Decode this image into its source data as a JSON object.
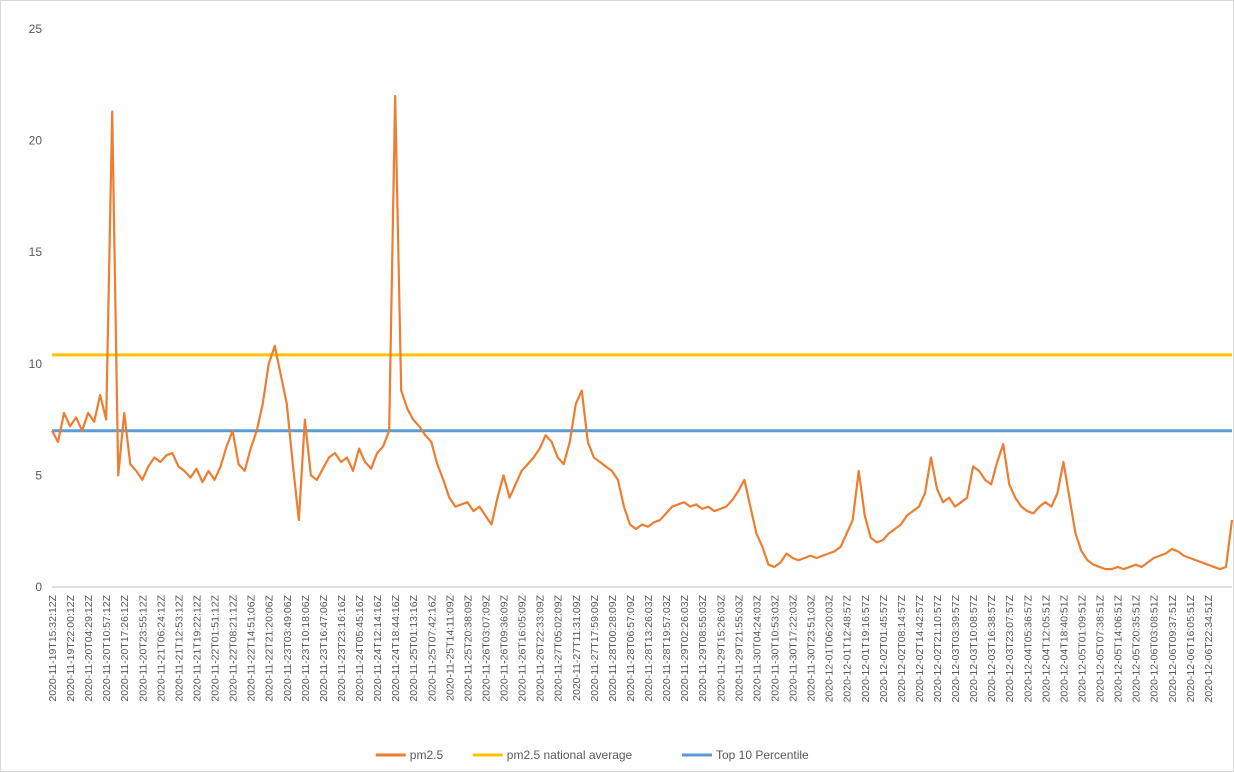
{
  "chart_data": {
    "type": "line",
    "categories": [
      "2020-11-19T15:32:12Z",
      null,
      null,
      "2020-11-19T22:00:12Z",
      null,
      null,
      "2020-11-20T04:29:12Z",
      null,
      null,
      "2020-11-20T10:57:12Z",
      null,
      null,
      "2020-11-20T17:26:12Z",
      null,
      null,
      "2020-11-20T23:55:12Z",
      null,
      null,
      "2020-11-21T06:24:12Z",
      null,
      null,
      "2020-11-21T12:53:12Z",
      null,
      null,
      "2020-11-21T19:22:12Z",
      null,
      null,
      "2020-11-22T01:51:12Z",
      null,
      null,
      "2020-11-22T08:21:12Z",
      null,
      null,
      "2020-11-22T14:51:06Z",
      null,
      null,
      "2020-11-22T21:20:06Z",
      null,
      null,
      "2020-11-23T03:49:06Z",
      null,
      null,
      "2020-11-23T10:18:06Z",
      null,
      null,
      "2020-11-23T16:47:06Z",
      null,
      null,
      "2020-11-23T23:16:16Z",
      null,
      null,
      "2020-11-24T05:45:16Z",
      null,
      null,
      "2020-11-24T12:14:16Z",
      null,
      null,
      "2020-11-24T18:44:16Z",
      null,
      null,
      "2020-11-25T01:13:16Z",
      null,
      null,
      "2020-11-25T07:42:16Z",
      null,
      null,
      "2020-11-25T14:11:09Z",
      null,
      null,
      "2020-11-25T20:38:09Z",
      null,
      null,
      "2020-11-26T03:07:09Z",
      null,
      null,
      "2020-11-26T09:36:09Z",
      null,
      null,
      "2020-11-26T16:05:09Z",
      null,
      null,
      "2020-11-26T22:33:09Z",
      null,
      null,
      "2020-11-27T05:02:09Z",
      null,
      null,
      "2020-11-27T11:31:09Z",
      null,
      null,
      "2020-11-27T17:59:09Z",
      null,
      null,
      "2020-11-28T00:28:09Z",
      null,
      null,
      "2020-11-28T06:57:09Z",
      null,
      null,
      "2020-11-28T13:26:03Z",
      null,
      null,
      "2020-11-28T19:57:03Z",
      null,
      null,
      "2020-11-29T02:26:03Z",
      null,
      null,
      "2020-11-29T08:55:03Z",
      null,
      null,
      "2020-11-29T15:26:03Z",
      null,
      null,
      "2020-11-29T21:55:03Z",
      null,
      null,
      "2020-11-30T04:24:03Z",
      null,
      null,
      "2020-11-30T10:53:03Z",
      null,
      null,
      "2020-11-30T17:22:03Z",
      null,
      null,
      "2020-11-30T23:51:03Z",
      null,
      null,
      "2020-12-01T06:20:03Z",
      null,
      null,
      "2020-12-01T12:48:57Z",
      null,
      null,
      "2020-12-01T19:16:57Z",
      null,
      null,
      "2020-12-02T01:45:57Z",
      null,
      null,
      "2020-12-02T08:14:57Z",
      null,
      null,
      "2020-12-02T14:42:57Z",
      null,
      null,
      "2020-12-02T21:10:57Z",
      null,
      null,
      "2020-12-03T03:39:57Z",
      null,
      null,
      "2020-12-03T10:08:57Z",
      null,
      null,
      "2020-12-03T16:38:57Z",
      null,
      null,
      "2020-12-03T23:07:57Z",
      null,
      null,
      "2020-12-04T05:36:57Z",
      null,
      null,
      "2020-12-04T12:05:51Z",
      null,
      null,
      "2020-12-04T18:40:51Z",
      null,
      null,
      "2020-12-05T01:09:51Z",
      null,
      null,
      "2020-12-05T07:38:51Z",
      null,
      null,
      "2020-12-05T14:06:51Z",
      null,
      null,
      "2020-12-05T20:35:51Z",
      null,
      null,
      "2020-12-06T03:08:51Z",
      null,
      null,
      "2020-12-06T09:37:51Z",
      null,
      null,
      "2020-12-06T16:05:51Z",
      null,
      null,
      "2020-12-06T22:34:51Z",
      null,
      null,
      null,
      null
    ],
    "series": [
      {
        "name": "pm2.5",
        "color": "#ed7d31",
        "values": [
          7.0,
          6.5,
          7.8,
          7.2,
          7.6,
          7.0,
          7.8,
          7.4,
          8.6,
          7.5,
          21.3,
          5.0,
          7.8,
          5.5,
          5.2,
          4.8,
          5.4,
          5.8,
          5.6,
          5.9,
          6.0,
          5.4,
          5.2,
          4.9,
          5.3,
          4.7,
          5.2,
          4.8,
          5.4,
          6.3,
          7.0,
          5.5,
          5.2,
          6.2,
          7.0,
          8.2,
          10.0,
          10.8,
          9.5,
          8.2,
          5.5,
          3.0,
          7.5,
          5.0,
          4.8,
          5.3,
          5.8,
          6.0,
          5.6,
          5.8,
          5.2,
          6.2,
          5.6,
          5.3,
          6.0,
          6.3,
          7.0,
          22.0,
          8.8,
          8.0,
          7.5,
          7.2,
          6.8,
          6.5,
          5.5,
          4.8,
          4.0,
          3.6,
          3.7,
          3.8,
          3.4,
          3.6,
          3.2,
          2.8,
          4.0,
          5.0,
          4.0,
          4.6,
          5.2,
          5.5,
          5.8,
          6.2,
          6.8,
          6.5,
          5.8,
          5.5,
          6.5,
          8.2,
          8.8,
          6.5,
          5.8,
          5.6,
          5.4,
          5.2,
          4.8,
          3.6,
          2.8,
          2.6,
          2.8,
          2.7,
          2.9,
          3.0,
          3.3,
          3.6,
          3.7,
          3.8,
          3.6,
          3.7,
          3.5,
          3.6,
          3.4,
          3.5,
          3.6,
          3.9,
          4.3,
          4.8,
          3.6,
          2.4,
          1.8,
          1.0,
          0.9,
          1.1,
          1.5,
          1.3,
          1.2,
          1.3,
          1.4,
          1.3,
          1.4,
          1.5,
          1.6,
          1.8,
          2.4,
          3.0,
          5.2,
          3.2,
          2.2,
          2.0,
          2.1,
          2.4,
          2.6,
          2.8,
          3.2,
          3.4,
          3.6,
          4.2,
          5.8,
          4.4,
          3.8,
          4.0,
          3.6,
          3.8,
          4.0,
          5.4,
          5.2,
          4.8,
          4.6,
          5.6,
          6.4,
          4.6,
          4.0,
          3.6,
          3.4,
          3.3,
          3.6,
          3.8,
          3.6,
          4.2,
          5.6,
          4.0,
          2.4,
          1.6,
          1.2,
          1.0,
          0.9,
          0.8,
          0.8,
          0.9,
          0.8,
          0.9,
          1.0,
          0.9,
          1.1,
          1.3,
          1.4,
          1.5,
          1.7,
          1.6,
          1.4,
          1.3,
          1.2,
          1.1,
          1.0,
          0.9,
          0.8,
          0.9,
          3.0
        ]
      }
    ],
    "reference_lines": [
      {
        "name": "pm2.5 national average",
        "color": "#ffc000",
        "value": 10.4
      },
      {
        "name": "Top 10 Percentile",
        "color": "#5b9bd5",
        "value": 7.0
      }
    ],
    "ylim": [
      0,
      25
    ],
    "yticks": [
      0,
      5,
      10,
      15,
      20,
      25
    ],
    "grid": false,
    "legend": "bottom"
  }
}
